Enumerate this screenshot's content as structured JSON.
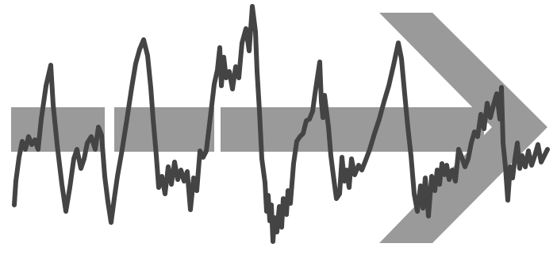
{
  "figure": {
    "background_color": "#ffffff",
    "arrow_color": "#9a9a9a",
    "signal_color": "#444444",
    "arrow_segments": 3,
    "icon": "arrow-right-icon"
  }
}
